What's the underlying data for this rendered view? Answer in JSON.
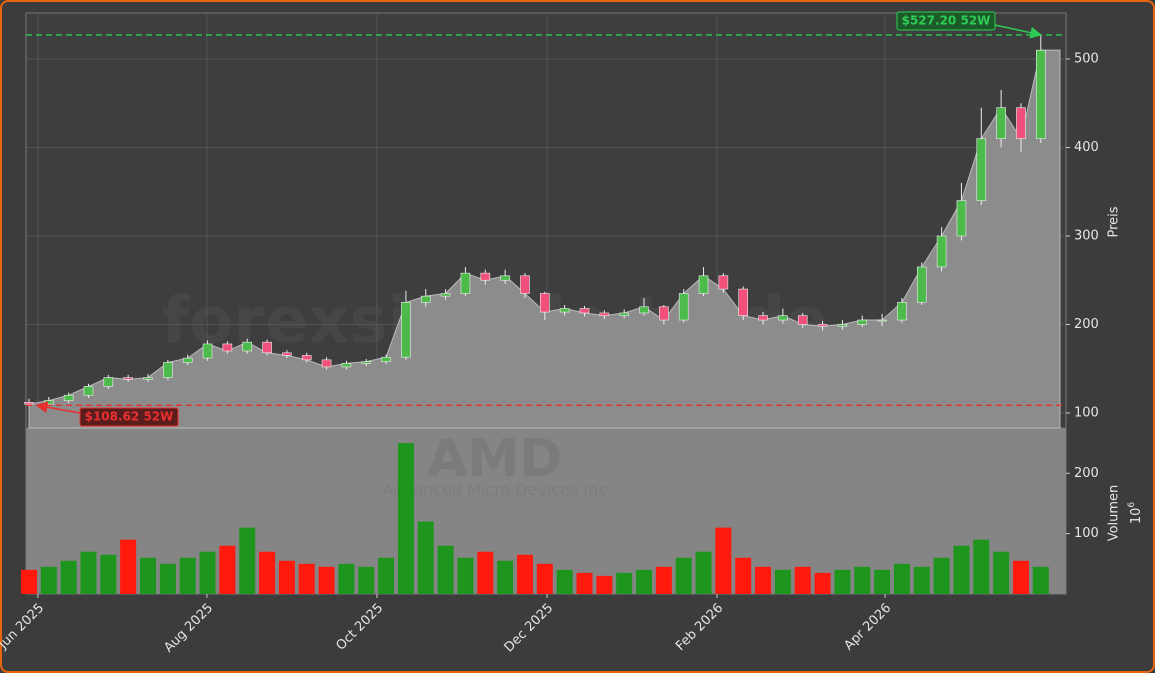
{
  "chart_data": {
    "type": "candlestick",
    "categories": [
      null,
      null,
      null,
      null,
      null,
      null,
      null,
      null,
      null,
      null,
      null,
      null,
      null,
      null,
      null,
      null,
      null,
      null,
      null,
      null,
      null,
      null,
      null,
      null,
      null,
      null,
      null,
      null,
      null,
      null,
      null,
      null,
      null,
      null,
      null,
      null,
      null,
      null,
      null,
      null,
      null,
      null,
      null,
      null,
      null,
      null,
      null,
      null,
      null,
      null,
      null,
      null
    ],
    "open": [
      112,
      110,
      114,
      120,
      130,
      140,
      138,
      140,
      157,
      162,
      178,
      170,
      180,
      168,
      165,
      160,
      152,
      156,
      158,
      163,
      225,
      232,
      235,
      258,
      250,
      255,
      235,
      214,
      218,
      213,
      210,
      213,
      220,
      205,
      235,
      255,
      240,
      210,
      205,
      210,
      200,
      198,
      200,
      205,
      205,
      225,
      265,
      300,
      340,
      410,
      445,
      410
    ],
    "high": [
      116,
      118,
      123,
      133,
      143,
      143,
      144,
      160,
      166,
      182,
      181,
      184,
      183,
      171,
      168,
      163,
      159,
      161,
      166,
      238,
      240,
      240,
      265,
      262,
      262,
      258,
      237,
      222,
      221,
      216,
      217,
      230,
      222,
      240,
      265,
      258,
      243,
      214,
      218,
      213,
      204,
      205,
      210,
      212,
      230,
      270,
      310,
      360,
      445,
      465,
      450,
      527.2
    ],
    "low": [
      108.62,
      109,
      111,
      117,
      127,
      135,
      135,
      137,
      154,
      159,
      167,
      167,
      165,
      162,
      157,
      149,
      149,
      153,
      155,
      160,
      220,
      228,
      232,
      245,
      246,
      230,
      205,
      210,
      209,
      206,
      207,
      210,
      200,
      202,
      232,
      236,
      205,
      200,
      201,
      196,
      193,
      194,
      197,
      198,
      202,
      222,
      260,
      295,
      335,
      400,
      395,
      405
    ],
    "close": [
      110,
      114,
      120,
      130,
      140,
      138,
      140,
      157,
      162,
      178,
      170,
      180,
      168,
      165,
      160,
      152,
      156,
      158,
      163,
      225,
      232,
      235,
      258,
      250,
      255,
      235,
      214,
      218,
      213,
      210,
      213,
      220,
      205,
      235,
      255,
      240,
      210,
      205,
      210,
      200,
      198,
      200,
      205,
      205,
      225,
      265,
      300,
      340,
      410,
      445,
      410,
      510
    ],
    "volume": [
      40,
      45,
      55,
      70,
      65,
      90,
      60,
      50,
      60,
      70,
      80,
      110,
      70,
      55,
      50,
      45,
      50,
      45,
      60,
      250,
      120,
      80,
      60,
      70,
      55,
      65,
      50,
      40,
      35,
      30,
      35,
      40,
      45,
      60,
      70,
      110,
      60,
      45,
      40,
      45,
      35,
      40,
      45,
      40,
      50,
      45,
      60,
      80,
      90,
      70,
      55,
      45
    ],
    "up_color": "#4cbb4c",
    "down_color": "#f0507a",
    "volume_up_color": "#1e961e",
    "volume_down_color": "#ff1a0d",
    "area_color": "#8c8c8c",
    "xlim": [
      -0.15,
      52.27
    ],
    "xticks": [
      {
        "value": 0.45,
        "label": "Jun 2025"
      },
      {
        "value": 8.97,
        "label": "Aug 2025"
      },
      {
        "value": 17.54,
        "label": "Oct 2025"
      },
      {
        "value": 26.11,
        "label": "Dec 2025"
      },
      {
        "value": 34.68,
        "label": "Feb 2026"
      },
      {
        "value": 43.15,
        "label": "Apr 2026"
      }
    ],
    "ylim": [
      83,
      552
    ],
    "yticks": [
      100,
      200,
      300,
      400,
      500
    ],
    "ylabel": "Preis",
    "volume_ylim": [
      0,
      275
    ],
    "volume_yticks": [
      100,
      200
    ],
    "volume_ylabel": "Volumen",
    "volume_scale": {
      "base": "10",
      "exponent": "6"
    },
    "grid": true,
    "annotations": [
      {
        "text": "$527.20 52W",
        "value": 527.2,
        "color": "#2ecc55"
      },
      {
        "text": "$108.62 52W",
        "value": 108.62,
        "color": "#e83030"
      }
    ],
    "watermark": {
      "site": "forexsignale.trade",
      "symbol": "AMD",
      "name": "Advanced Micro Devices Inc"
    }
  }
}
